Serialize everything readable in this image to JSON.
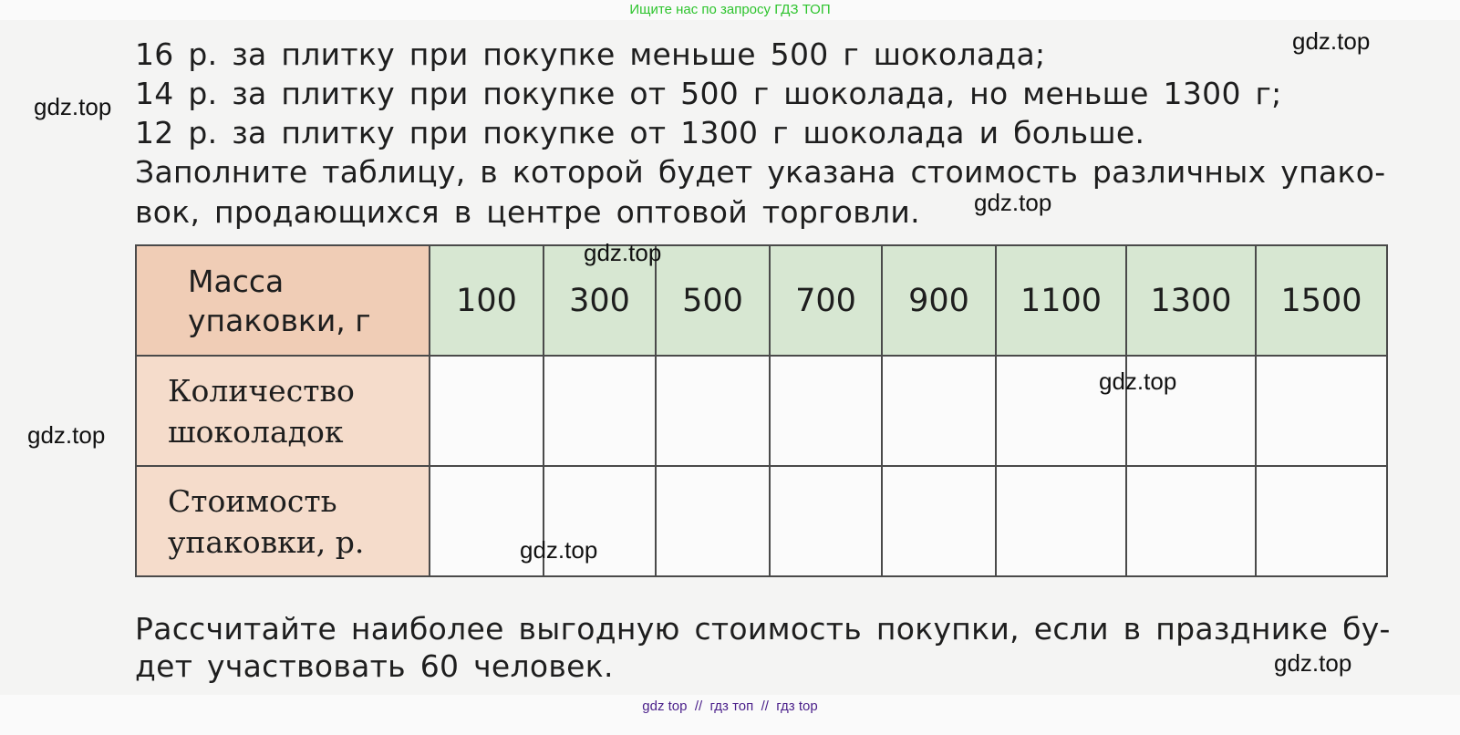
{
  "banner": "Ищите нас по запросу ГДЗ ТОП",
  "text_lines": [
    "16 р. за плитку при покупке меньше 500 г шоколада;",
    "14 р. за плитку при покупке от 500 г шоколада, но меньше 1300 г;",
    "12 р. за плитку при покупке от 1300 г шоколада и больше.",
    "Заполните таблицу, в которой будет указана стоимость различных упако-",
    "вок, продающихся в центре оптовой торговли."
  ],
  "table": {
    "row_headers": [
      [
        "Масса",
        "упаковки, г"
      ],
      [
        "Количество",
        "шоколадок"
      ],
      [
        "Стоимость",
        "упаковки, р."
      ]
    ],
    "masses": [
      "100",
      "300",
      "500",
      "700",
      "900",
      "1100",
      "1300",
      "1500"
    ],
    "colors": {
      "header": "#f0cdb6",
      "labels": "#f5dccb",
      "mass_cells": "#d7e7d2"
    }
  },
  "question_lines": [
    "Рассчитайте наиболее выгодную стоимость покупки, если в празднике бу-",
    "дет участвовать 60 человек."
  ],
  "watermark": "gdz.top",
  "footer": "gdz top  //  гдз топ  //  гдз top"
}
